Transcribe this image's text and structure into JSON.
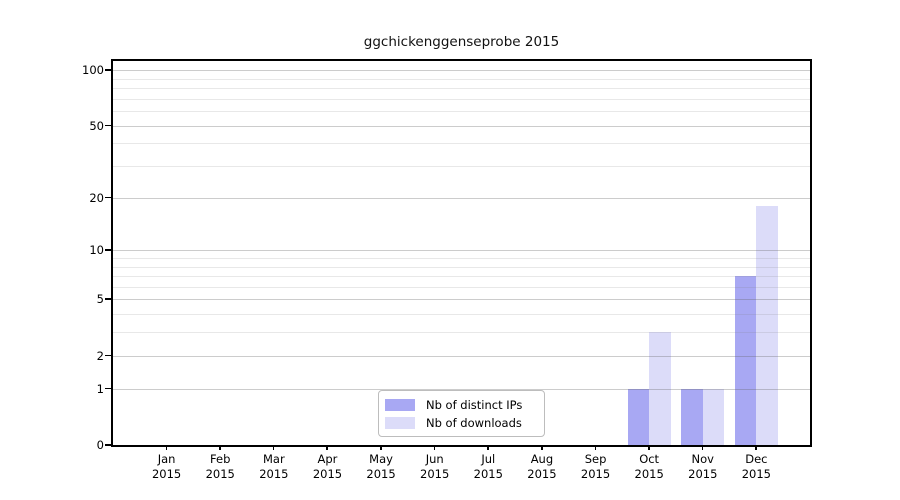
{
  "chart_data": {
    "type": "bar",
    "title": "ggchickenggenseprobe 2015",
    "categories": [
      "Jan",
      "Feb",
      "Mar",
      "Apr",
      "May",
      "Jun",
      "Jul",
      "Aug",
      "Sep",
      "Oct",
      "Nov",
      "Dec"
    ],
    "x_year_line": "2015",
    "series": [
      {
        "name": "Nb of distinct IPs",
        "color": "#a8a8f3",
        "values": [
          0,
          0,
          0,
          0,
          0,
          0,
          0,
          0,
          0,
          1,
          1,
          7
        ]
      },
      {
        "name": "Nb of downloads",
        "color": "#dcdcf9",
        "values": [
          0,
          0,
          0,
          0,
          0,
          0,
          0,
          0,
          0,
          3,
          1,
          18
        ]
      }
    ],
    "xlabel": "",
    "ylabel": "",
    "yscale": "log1p",
    "ylim": [
      0,
      112
    ],
    "y_major_ticks": [
      0,
      1,
      2,
      5,
      10,
      20,
      50,
      100
    ],
    "y_minor_ticks": [
      3,
      4,
      6,
      7,
      8,
      9,
      30,
      40,
      60,
      70,
      80,
      90
    ],
    "grid": "horizontal",
    "legend_position": "lower center",
    "colors": {
      "major_grid": "#cdcdcd",
      "minor_grid": "#e8e8e8",
      "axis": "#000000",
      "background": "#ffffff"
    }
  }
}
